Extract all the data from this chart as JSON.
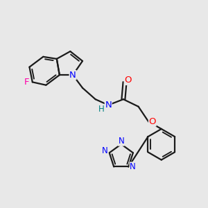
{
  "bg_color": "#e8e8e8",
  "bond_color": "#1a1a1a",
  "bond_width": 1.6,
  "atom_colors": {
    "N": "#0000ff",
    "O": "#ff0000",
    "F": "#ff00aa",
    "H_label": "#008080",
    "C": "#1a1a1a"
  },
  "font_size": 8.5,
  "fig_size": [
    3.0,
    3.0
  ],
  "dpi": 100,
  "xlim": [
    0.0,
    9.5
  ],
  "ylim": [
    1.5,
    9.5
  ]
}
